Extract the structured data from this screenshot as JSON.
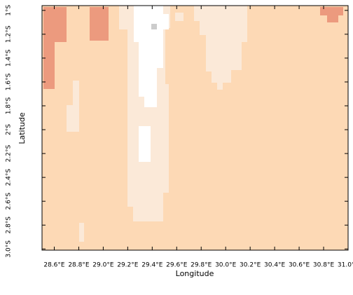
{
  "chart_data": {
    "type": "map",
    "xlabel": "Longitude",
    "ylabel": "Latitude",
    "xlim": [
      28.5,
      31.0
    ],
    "ylim": [
      -3.01,
      -0.96
    ],
    "xticks": [
      {
        "value": 28.6,
        "label": "28.6°E"
      },
      {
        "value": 28.8,
        "label": "28.8°E"
      },
      {
        "value": 29.0,
        "label": "29.0°E"
      },
      {
        "value": 29.2,
        "label": "29.2°E"
      },
      {
        "value": 29.4,
        "label": "29.4°E"
      },
      {
        "value": 29.6,
        "label": "29.6°E"
      },
      {
        "value": 29.8,
        "label": "29.8°E"
      },
      {
        "value": 30.0,
        "label": "30.0°E"
      },
      {
        "value": 30.2,
        "label": "30.2°E"
      },
      {
        "value": 30.4,
        "label": "30.4°E"
      },
      {
        "value": 30.6,
        "label": "30.6°E"
      },
      {
        "value": 30.8,
        "label": "30.8°E"
      },
      {
        "value": 31.0,
        "label": "31.0°E"
      }
    ],
    "yticks": [
      {
        "value": -1.0,
        "label": "1°S"
      },
      {
        "value": -1.2,
        "label": "1.2°S"
      },
      {
        "value": -1.4,
        "label": "1.4°S"
      },
      {
        "value": -1.6,
        "label": "1.6°S"
      },
      {
        "value": -1.8,
        "label": "1.8°S"
      },
      {
        "value": -2.0,
        "label": "2°S"
      },
      {
        "value": -2.2,
        "label": "2.2°S"
      },
      {
        "value": -2.4,
        "label": "2.4°S"
      },
      {
        "value": -2.6,
        "label": "2.6°S"
      },
      {
        "value": -2.8,
        "label": "2.8°S"
      },
      {
        "value": -3.0,
        "label": "3.0°S"
      }
    ]
  }
}
